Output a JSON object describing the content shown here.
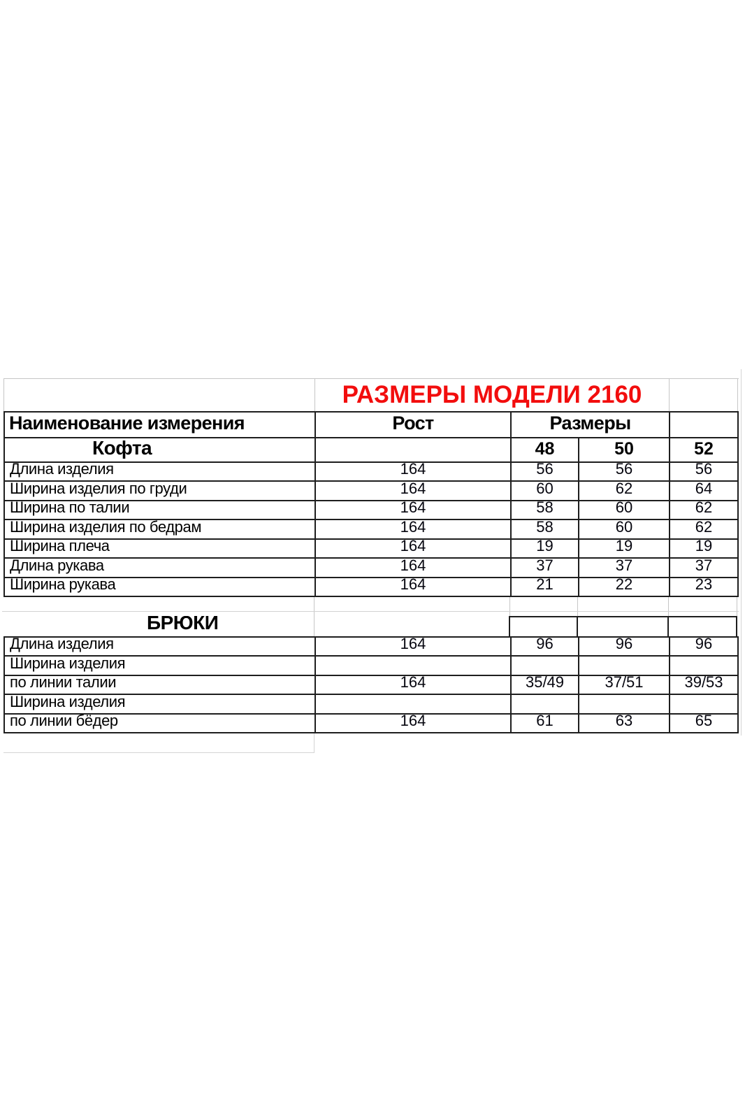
{
  "title": "РАЗМЕРЫ МОДЕЛИ 2160",
  "header": {
    "name_col": "Наименование измерения",
    "height_col": "Рост",
    "sizes_col": "Размеры"
  },
  "kofta": {
    "section_label": "Кофта",
    "size_48": "48",
    "size_50": "50",
    "size_52": "52",
    "rows": [
      {
        "label": "Длина изделия",
        "rost": "164",
        "v48": "56",
        "v50": "56",
        "v52": "56"
      },
      {
        "label": "Ширина изделия по груди",
        "rost": "164",
        "v48": "60",
        "v50": "62",
        "v52": "64"
      },
      {
        "label": "Ширина по талии",
        "rost": "164",
        "v48": "58",
        "v50": "60",
        "v52": "62"
      },
      {
        "label": "Ширина изделия по бедрам",
        "rost": "164",
        "v48": "58",
        "v50": "60",
        "v52": "62"
      },
      {
        "label": "Ширина плеча",
        "rost": "164",
        "v48": "19",
        "v50": "19",
        "v52": "19"
      },
      {
        "label": "Длина рукава",
        "rost": "164",
        "v48": "37",
        "v50": "37",
        "v52": "37"
      },
      {
        "label": "Ширина рукава",
        "rost": "164",
        "v48": "21",
        "v50": "22",
        "v52": "23"
      }
    ]
  },
  "bryuki": {
    "section_label": "БРЮКИ",
    "rows": [
      {
        "label": "Длина изделия",
        "rost": "164",
        "v48": "96",
        "v50": "96",
        "v52": "96"
      },
      {
        "label": "Ширина изделия",
        "rost": "",
        "v48": "",
        "v50": "",
        "v52": ""
      },
      {
        "label": "по линии талии",
        "rost": "164",
        "v48": "35/49",
        "v50": "37/51",
        "v52": "39/53"
      },
      {
        "label": "Ширина изделия",
        "rost": "",
        "v48": "",
        "v50": "",
        "v52": ""
      },
      {
        "label": "по линии бёдер",
        "rost": "164",
        "v48": "61",
        "v50": "63",
        "v52": "65"
      }
    ]
  },
  "colors": {
    "title_red": "#f20d0d",
    "border_dark": "#1e1e1e",
    "gridline_light": "#c6c6c6",
    "background": "#ffffff"
  }
}
